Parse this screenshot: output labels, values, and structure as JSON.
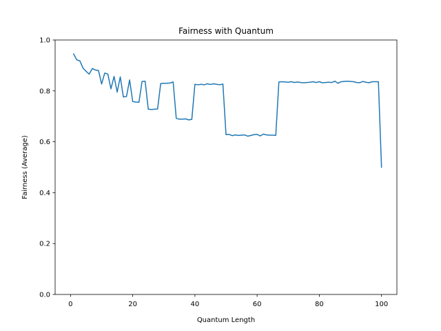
{
  "chart_data": {
    "type": "line",
    "title": "Fairness with Quantum",
    "xlabel": "Quantum Length",
    "ylabel": "Fairness (Average)",
    "xlim": [
      -4.95,
      104.95
    ],
    "ylim": [
      0,
      1.0
    ],
    "xticks": [
      0,
      20,
      40,
      60,
      80,
      100
    ],
    "yticks": [
      0.0,
      0.2,
      0.4,
      0.6,
      0.8,
      1.0
    ],
    "xtick_labels": [
      "0",
      "20",
      "40",
      "60",
      "80",
      "100"
    ],
    "ytick_labels": [
      "0.0",
      "0.2",
      "0.4",
      "0.6",
      "0.8",
      "1.0"
    ],
    "grid": false,
    "color": "#1f77b4",
    "series": [
      {
        "name": "fairness",
        "x": [
          1,
          2,
          3,
          4,
          5,
          6,
          7,
          8,
          9,
          10,
          11,
          12,
          13,
          14,
          15,
          16,
          17,
          18,
          19,
          20,
          21,
          22,
          23,
          24,
          25,
          26,
          27,
          28,
          29,
          30,
          31,
          32,
          33,
          34,
          35,
          36,
          37,
          38,
          39,
          40,
          41,
          42,
          43,
          44,
          45,
          46,
          47,
          48,
          49,
          50,
          51,
          52,
          53,
          54,
          55,
          56,
          57,
          58,
          59,
          60,
          61,
          62,
          63,
          64,
          65,
          66,
          67,
          68,
          69,
          70,
          71,
          72,
          73,
          74,
          75,
          76,
          77,
          78,
          79,
          80,
          81,
          82,
          83,
          84,
          85,
          86,
          87,
          88,
          89,
          90,
          91,
          92,
          93,
          94,
          95,
          96,
          97,
          98,
          99,
          100
        ],
        "y": [
          0.945,
          0.922,
          0.918,
          0.89,
          0.877,
          0.866,
          0.888,
          0.882,
          0.88,
          0.827,
          0.87,
          0.866,
          0.808,
          0.857,
          0.795,
          0.855,
          0.776,
          0.778,
          0.843,
          0.758,
          0.756,
          0.755,
          0.837,
          0.838,
          0.728,
          0.727,
          0.728,
          0.729,
          0.829,
          0.83,
          0.83,
          0.831,
          0.835,
          0.692,
          0.689,
          0.689,
          0.69,
          0.686,
          0.688,
          0.826,
          0.824,
          0.826,
          0.824,
          0.828,
          0.825,
          0.828,
          0.826,
          0.824,
          0.827,
          0.628,
          0.629,
          0.624,
          0.627,
          0.625,
          0.626,
          0.627,
          0.622,
          0.625,
          0.628,
          0.629,
          0.623,
          0.63,
          0.627,
          0.626,
          0.626,
          0.625,
          0.835,
          0.836,
          0.835,
          0.834,
          0.836,
          0.833,
          0.835,
          0.833,
          0.832,
          0.833,
          0.834,
          0.836,
          0.833,
          0.836,
          0.832,
          0.833,
          0.834,
          0.833,
          0.838,
          0.83,
          0.836,
          0.837,
          0.838,
          0.837,
          0.836,
          0.833,
          0.832,
          0.837,
          0.834,
          0.832,
          0.836,
          0.836,
          0.836,
          0.5
        ]
      }
    ]
  }
}
